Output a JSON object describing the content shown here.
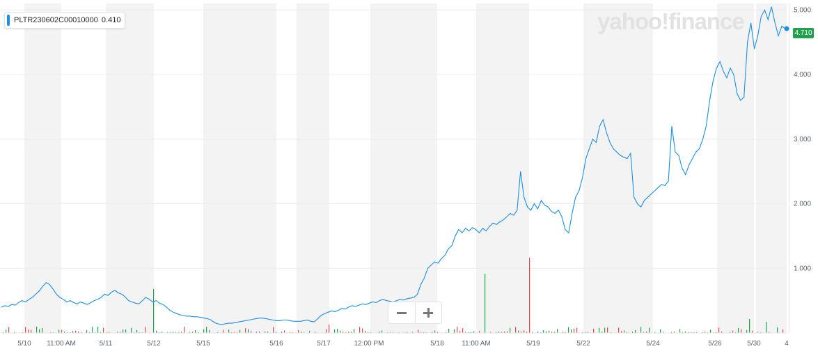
{
  "legend": {
    "symbol": "PLTR230602C00010000",
    "value": "0.410"
  },
  "watermark": "yahoo!finance",
  "last_price": "4.710",
  "colors": {
    "line": "#1a8fe3",
    "up": "#21a14b",
    "down": "#e0464b",
    "band": "#f3f3f3"
  },
  "chart_data": {
    "type": "line",
    "y_ticks": [
      "1.000",
      "2.000",
      "3.000",
      "4.000",
      "5.000"
    ],
    "ylim": [
      0,
      5.1
    ],
    "x_ticks": [
      "5/10",
      "11:00 AM",
      "5/11",
      "5/12",
      "5/15",
      "5/16",
      "5/17",
      "12:00 PM",
      "5/18",
      "11:00 AM",
      "5/19",
      "5/22",
      "5/24",
      "5/26",
      "5/30",
      "4"
    ],
    "series": [
      {
        "values": [
          0.4,
          0.42,
          0.41,
          0.44,
          0.43,
          0.47,
          0.5,
          0.48,
          0.52,
          0.55,
          0.6,
          0.65,
          0.72,
          0.78,
          0.75,
          0.68,
          0.6,
          0.55,
          0.52,
          0.48,
          0.5,
          0.47,
          0.45,
          0.48,
          0.46,
          0.44,
          0.47,
          0.5,
          0.52,
          0.55,
          0.6,
          0.58,
          0.63,
          0.66,
          0.62,
          0.6,
          0.56,
          0.5,
          0.48,
          0.46,
          0.45,
          0.5,
          0.55,
          0.52,
          0.48,
          0.5,
          0.46,
          0.44,
          0.4,
          0.35,
          0.32,
          0.3,
          0.28,
          0.27,
          0.26,
          0.26,
          0.25,
          0.25,
          0.24,
          0.23,
          0.22,
          0.2,
          0.16,
          0.14,
          0.13,
          0.14,
          0.15,
          0.15,
          0.16,
          0.17,
          0.18,
          0.19,
          0.2,
          0.21,
          0.22,
          0.23,
          0.23,
          0.22,
          0.21,
          0.2,
          0.19,
          0.19,
          0.2,
          0.2,
          0.19,
          0.18,
          0.18,
          0.18,
          0.19,
          0.2,
          0.18,
          0.17,
          0.22,
          0.27,
          0.3,
          0.32,
          0.34,
          0.33,
          0.35,
          0.38,
          0.37,
          0.4,
          0.42,
          0.41,
          0.43,
          0.45,
          0.44,
          0.46,
          0.48,
          0.47,
          0.5,
          0.52,
          0.5,
          0.49,
          0.48,
          0.5,
          0.52,
          0.51,
          0.53,
          0.54,
          0.55,
          0.6,
          0.75,
          0.85,
          1.0,
          1.05,
          1.1,
          1.08,
          1.15,
          1.2,
          1.3,
          1.35,
          1.5,
          1.6,
          1.55,
          1.62,
          1.58,
          1.63,
          1.6,
          1.55,
          1.62,
          1.58,
          1.65,
          1.7,
          1.68,
          1.72,
          1.75,
          1.8,
          1.85,
          1.82,
          1.9,
          2.5,
          2.1,
          1.95,
          1.9,
          2.0,
          1.92,
          2.05,
          1.98,
          1.95,
          1.88,
          1.85,
          1.9,
          1.8,
          1.6,
          1.55,
          1.85,
          2.1,
          2.2,
          2.4,
          2.7,
          2.85,
          3.0,
          2.95,
          3.2,
          3.3,
          3.1,
          2.95,
          2.85,
          2.8,
          2.75,
          2.72,
          2.7,
          2.78,
          2.1,
          2.0,
          1.95,
          2.05,
          2.1,
          2.15,
          2.2,
          2.25,
          2.3,
          2.28,
          2.35,
          3.2,
          2.8,
          2.75,
          2.55,
          2.45,
          2.6,
          2.7,
          2.8,
          2.85,
          3.0,
          3.2,
          3.6,
          3.9,
          4.1,
          4.2,
          4.05,
          3.95,
          4.1,
          4.0,
          3.7,
          3.6,
          3.65,
          4.5,
          4.8,
          4.4,
          4.6,
          4.9,
          5.0,
          4.85,
          5.05,
          4.8,
          4.6,
          4.75,
          4.71
        ]
      }
    ]
  }
}
